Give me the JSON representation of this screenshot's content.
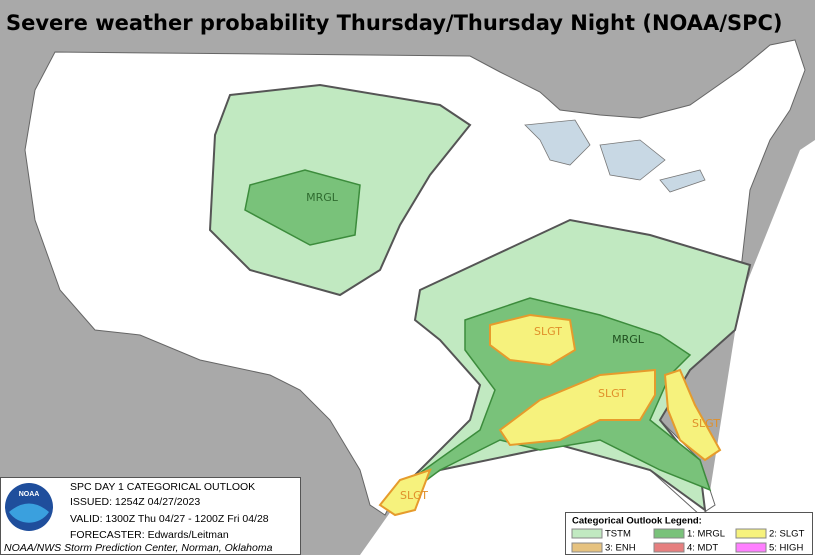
{
  "title": "Severe weather probability Thursday/Thursday Night (NOAA/SPC)",
  "outlook_labels": [
    "MRGL",
    "SLGT",
    "MRGL",
    "SLGT",
    "SLGT",
    "SLGT"
  ],
  "info": {
    "logo": "NOAA",
    "product": "SPC DAY 1 CATEGORICAL OUTLOOK",
    "issued": "ISSUED: 1254Z 04/27/2023",
    "valid": "VALID: 1300Z Thu 04/27 - 1200Z Fri 04/28",
    "forecaster": "FORECASTER: Edwards/Leitman",
    "credit": "NOAA/NWS Storm Prediction Center, Norman, Oklahoma"
  },
  "legend": {
    "title": "Categorical Outlook Legend:",
    "items": [
      "TSTM",
      "1: MRGL",
      "2: SLGT",
      "3: ENH",
      "4: MDT",
      "5: HIGH"
    ]
  }
}
